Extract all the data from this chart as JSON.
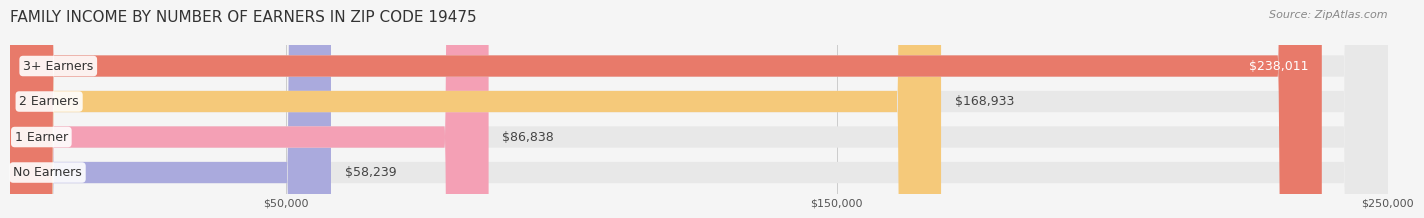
{
  "title": "FAMILY INCOME BY NUMBER OF EARNERS IN ZIP CODE 19475",
  "source": "Source: ZipAtlas.com",
  "categories": [
    "No Earners",
    "1 Earner",
    "2 Earners",
    "3+ Earners"
  ],
  "values": [
    58239,
    86838,
    168933,
    238011
  ],
  "labels": [
    "$58,239",
    "$86,838",
    "$168,933",
    "$238,011"
  ],
  "bar_colors": [
    "#aaaadd",
    "#f4a0b5",
    "#f5c97a",
    "#e87a6a"
  ],
  "bar_bg_color": "#e8e8e8",
  "label_bg_color": "#f5f5f5",
  "xlim_min": 0,
  "xlim_max": 250000,
  "xticks": [
    50000,
    150000,
    250000
  ],
  "xtick_labels": [
    "$50,000",
    "$150,000",
    "$250,000"
  ],
  "title_fontsize": 11,
  "source_fontsize": 8,
  "bar_label_fontsize": 9,
  "category_fontsize": 9,
  "tick_fontsize": 8,
  "background_color": "#f5f5f5",
  "bar_height": 0.6,
  "value_label_inside_threshold": 200000
}
